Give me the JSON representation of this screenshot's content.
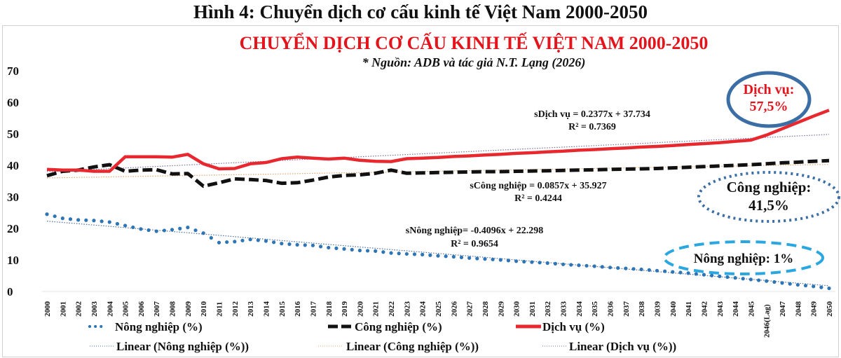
{
  "figure_title": "Hình 4: Chuyển dịch cơ cấu kinh tế Việt Nam 2000-2050",
  "chart_title": "CHUYỂN DỊCH CƠ CẤU KINH TẾ VIỆT NAM 2000-2050",
  "chart_subtitle": "* Nguồn: ADB và tác giả N.T. Lạng (2026)",
  "colors": {
    "title_red": "#e3141c",
    "services": "#e8282f",
    "industry": "#111111",
    "agriculture": "#2e75b6",
    "callout_blue": "#3b6ea5",
    "callout_cyan": "#2aa7e0"
  },
  "annotations": {
    "services_eq": "sDịch vụ = 0.2377x + 37.734",
    "services_r2": "R² = 0.7369",
    "industry_eq": "sCông nghiệp = 0.0857x + 35.927",
    "industry_r2": "R² = 0.4244",
    "agri_eq": "sNông nghiệp= -0.4096x + 22.298",
    "agri_r2": "R² = 0.9654",
    "callout_services_1": "Dịch vụ:",
    "callout_services_2": "57,5%",
    "callout_industry_1": "Công nghiệp:",
    "callout_industry_2": "41,5%",
    "callout_agri": "Nông nghiệp: 1%"
  },
  "legend": {
    "agri": "Nông nghiệp (%)",
    "industry": "Công nghiệp (%)",
    "services": "Dịch vụ (%)",
    "lin_agri": "Linear (Nông nghiệp (%))",
    "lin_industry": "Linear (Công nghiệp (%))",
    "lin_services": "Linear (Dịch vụ (%))"
  },
  "chart_data": {
    "type": "line",
    "title": "CHUYỂN DỊCH CƠ CẤU KINH TẾ VIỆT NAM 2000-2050",
    "subtitle": "* Nguồn: ADB và tác giả N.T. Lạng (2026)",
    "xlabel": "",
    "ylabel": "",
    "ylim": [
      0,
      70
    ],
    "yticks": [
      0,
      10,
      20,
      30,
      40,
      50,
      60,
      70
    ],
    "grid": false,
    "legend_position": "bottom",
    "categories": [
      "2000",
      "2001",
      "2002",
      "2003",
      "2004",
      "2005",
      "2006",
      "2007",
      "2008",
      "2009",
      "2010",
      "2011",
      "2012",
      "2013",
      "2014",
      "2015",
      "2016",
      "2017",
      "2018",
      "2019",
      "2020",
      "2021",
      "2022",
      "2023",
      "2024",
      "2025",
      "2026",
      "2027",
      "2028",
      "2029",
      "2030",
      "2031",
      "2032",
      "2033",
      "2034",
      "2035",
      "2036",
      "2037",
      "2038",
      "2039",
      "2040",
      "2041",
      "2042",
      "2043",
      "2044",
      "2045",
      "2046(Lag)",
      "2047",
      "2048",
      "2049",
      "2050"
    ],
    "series": [
      {
        "name": "Nông nghiệp (%)",
        "style": "dotted",
        "values": [
          24.5,
          23.2,
          22.7,
          22.5,
          22.0,
          20.9,
          19.8,
          19.1,
          19.6,
          20.3,
          18.5,
          15.5,
          15.8,
          16.5,
          16.0,
          15.2,
          14.8,
          14.6,
          13.9,
          13.5,
          13.0,
          12.8,
          12.2,
          11.9,
          11.7,
          11.3,
          11.0,
          10.6,
          10.3,
          10.0,
          9.6,
          9.3,
          9.0,
          8.6,
          8.3,
          8.0,
          7.6,
          7.3,
          7.0,
          6.6,
          6.2,
          5.8,
          5.3,
          4.8,
          4.3,
          3.8,
          3.3,
          2.7,
          2.1,
          1.6,
          1.0
        ]
      },
      {
        "name": "Công nghiệp (%)",
        "style": "dashed",
        "values": [
          36.7,
          38.1,
          38.5,
          39.5,
          40.2,
          38.1,
          38.5,
          38.6,
          37.3,
          37.4,
          33.4,
          34.5,
          35.7,
          35.5,
          35.2,
          34.3,
          34.5,
          35.3,
          36.3,
          36.8,
          37.0,
          37.5,
          38.5,
          37.5,
          37.6,
          37.7,
          37.8,
          37.9,
          38.0,
          38.0,
          38.1,
          38.2,
          38.3,
          38.4,
          38.5,
          38.6,
          38.7,
          38.8,
          38.9,
          39.0,
          39.2,
          39.4,
          39.6,
          39.8,
          40.0,
          40.2,
          40.5,
          40.8,
          41.0,
          41.3,
          41.5
        ]
      },
      {
        "name": "Dịch vụ (%)",
        "style": "solid",
        "values": [
          38.7,
          38.5,
          38.5,
          38.1,
          38.1,
          42.7,
          42.7,
          42.7,
          42.6,
          43.5,
          40.5,
          38.9,
          39.0,
          40.5,
          40.9,
          42.1,
          42.6,
          42.3,
          42.0,
          42.3,
          41.6,
          41.3,
          41.2,
          42.1,
          42.3,
          42.5,
          42.8,
          43.0,
          43.3,
          43.5,
          43.8,
          44.0,
          44.3,
          44.5,
          44.8,
          45.0,
          45.3,
          45.5,
          45.8,
          46.0,
          46.3,
          46.6,
          46.9,
          47.2,
          47.6,
          48.0,
          49.6,
          51.6,
          53.6,
          55.6,
          57.5
        ]
      },
      {
        "name": "Linear (Nông nghiệp (%))",
        "style": "thin-dotted",
        "values": [
          22.3,
          1.8
        ],
        "x": [
          "2000",
          "2050"
        ]
      },
      {
        "name": "Linear (Công nghiệp (%))",
        "style": "thin-dotted",
        "values": [
          36.0,
          40.3
        ],
        "x": [
          "2000",
          "2050"
        ]
      },
      {
        "name": "Linear (Dịch vụ (%))",
        "style": "thin-dotted",
        "values": [
          38.0,
          49.8
        ],
        "x": [
          "2000",
          "2050"
        ]
      }
    ],
    "annotations": [
      "sDịch vụ = 0.2377x + 37.734; R² = 0.7369",
      "sCông nghiệp = 0.0857x + 35.927; R² = 0.4244",
      "sNông nghiệp= -0.4096x + 22.298; R² = 0.9654",
      "Dịch vụ: 57,5%",
      "Công nghiệp: 41,5%",
      "Nông nghiệp: 1%"
    ]
  }
}
